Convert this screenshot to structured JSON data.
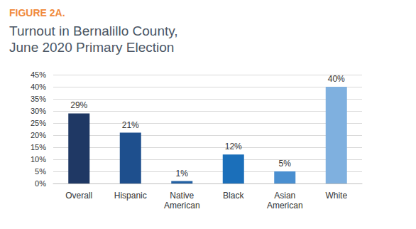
{
  "chart_data": {
    "type": "bar",
    "subtitle": "FIGURE 2A.",
    "title": "Turnout in Bernalillo County, June 2020 Primary Election",
    "categories": [
      "Overall",
      "Hispanic",
      "Native American",
      "Black",
      "Asian American",
      "White"
    ],
    "values": [
      29,
      21,
      1,
      12,
      5,
      40
    ],
    "value_labels": [
      "29%",
      "21%",
      "1%",
      "12%",
      "5%",
      "40%"
    ],
    "colors": [
      "#1f3864",
      "#1e4f8d",
      "#2461a3",
      "#1b6fba",
      "#4a8fd0",
      "#7fb0df"
    ],
    "ylim": [
      0,
      45
    ],
    "yticks": [
      {
        "value": 0,
        "label": "0%"
      },
      {
        "value": 5,
        "label": "5%"
      },
      {
        "value": 10,
        "label": "10%"
      },
      {
        "value": 15,
        "label": "15%"
      },
      {
        "value": 20,
        "label": "20%"
      },
      {
        "value": 25,
        "label": "25%"
      },
      {
        "value": 30,
        "label": "30%"
      },
      {
        "value": 35,
        "label": "35%"
      },
      {
        "value": 40,
        "label": "40%"
      },
      {
        "value": 45,
        "label": "45%"
      }
    ],
    "grid": true,
    "data_labels": true
  }
}
